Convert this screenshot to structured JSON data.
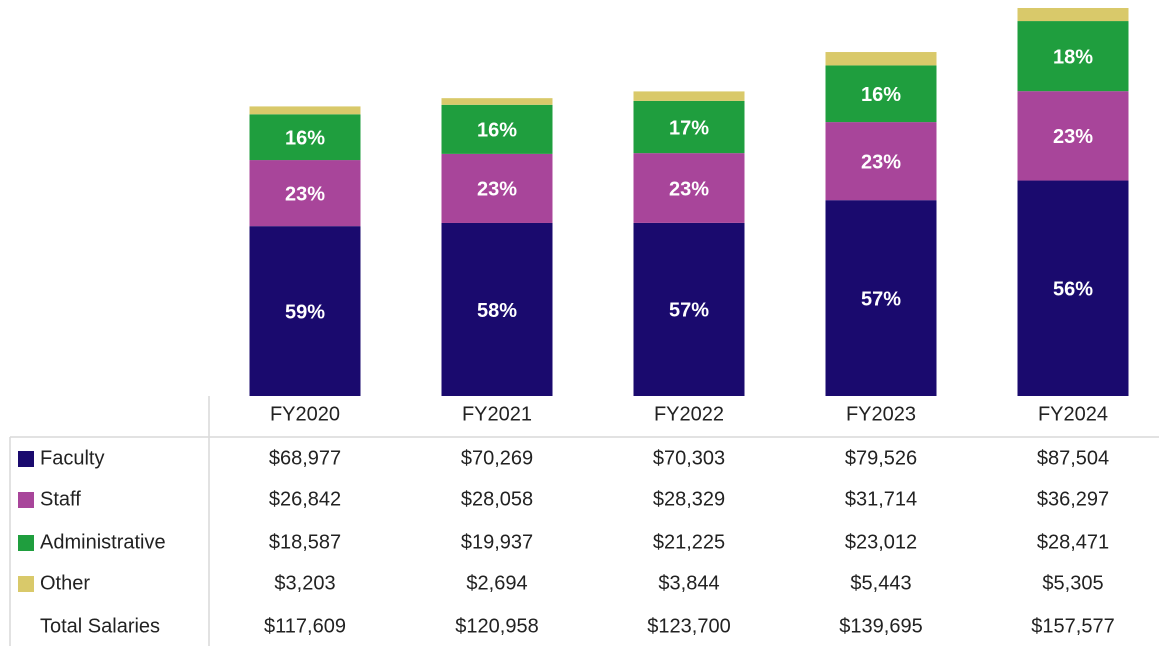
{
  "chart_data": {
    "type": "stacked_bar",
    "categories": [
      "FY2020",
      "FY2021",
      "FY2022",
      "FY2023",
      "FY2024"
    ],
    "series": [
      {
        "name": "Faculty",
        "color": "#1a0a6e",
        "values": [
          68977,
          70269,
          70303,
          79526,
          87504
        ],
        "value_labels": [
          "$68,977",
          "$70,269",
          "$70,303",
          "$79,526",
          "$87,504"
        ],
        "share_labels": [
          "59%",
          "58%",
          "57%",
          "57%",
          "56%"
        ]
      },
      {
        "name": "Staff",
        "color": "#a8459a",
        "values": [
          26842,
          28058,
          28329,
          31714,
          36297
        ],
        "value_labels": [
          "$26,842",
          "$28,058",
          "$28,329",
          "$31,714",
          "$36,297"
        ],
        "share_labels": [
          "23%",
          "23%",
          "23%",
          "23%",
          "23%"
        ]
      },
      {
        "name": "Administrative",
        "color": "#1f9e3e",
        "values": [
          18587,
          19937,
          21225,
          23012,
          28471
        ],
        "value_labels": [
          "$18,587",
          "$19,937",
          "$21,225",
          "$23,012",
          "$28,471"
        ],
        "share_labels": [
          "16%",
          "16%",
          "17%",
          "16%",
          "18%"
        ]
      },
      {
        "name": "Other",
        "color": "#d9c96a",
        "values": [
          3203,
          2694,
          3844,
          5443,
          5305
        ],
        "value_labels": [
          "$3,203",
          "$2,694",
          "$3,844",
          "$5,443",
          "$5,305"
        ]
      }
    ],
    "total_name": "Total Salaries",
    "totals": [
      117609,
      120958,
      123700,
      139695,
      157577
    ],
    "total_labels": [
      "$117,609",
      "$120,958",
      "$123,700",
      "$139,695",
      "$157,577"
    ]
  }
}
